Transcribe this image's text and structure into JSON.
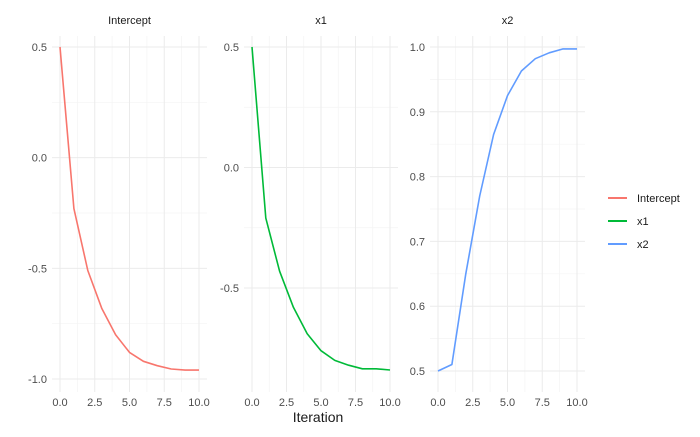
{
  "chart_data": {
    "type": "line",
    "xlabel": "Iteration",
    "ylabel": "",
    "legend_position": "right",
    "grid": true,
    "x_ticks": [
      0.0,
      2.5,
      5.0,
      7.5,
      10.0
    ],
    "x_tick_labels": [
      "0.0",
      "2.5",
      "5.0",
      "7.5",
      "10.0"
    ],
    "legend": [
      {
        "name": "Intercept",
        "color": "#F8766D"
      },
      {
        "name": "x1",
        "color": "#00BA38"
      },
      {
        "name": "x2",
        "color": "#619CFF"
      }
    ],
    "panels": [
      {
        "title": "Intercept",
        "series": "Intercept",
        "color": "#F8766D",
        "ylim": [
          -1.0,
          0.5
        ],
        "y_ticks": [
          0.5,
          0.0,
          -0.5,
          -1.0
        ],
        "y_tick_labels": [
          "0.5",
          "0.0",
          "-0.5",
          "-1.0"
        ],
        "x": [
          0,
          1,
          2,
          3,
          4,
          5,
          6,
          7,
          8,
          9,
          10
        ],
        "y": [
          0.5,
          -0.23,
          -0.51,
          -0.68,
          -0.8,
          -0.88,
          -0.92,
          -0.94,
          -0.955,
          -0.96,
          -0.96
        ]
      },
      {
        "title": "x1",
        "series": "x1",
        "color": "#00BA38",
        "ylim": [
          -0.84,
          0.5
        ],
        "y_ticks": [
          0.5,
          0.0,
          -0.5
        ],
        "y_tick_labels": [
          "0.5",
          "0.0",
          "-0.5"
        ],
        "x": [
          0,
          1,
          2,
          3,
          4,
          5,
          6,
          7,
          8,
          9,
          10
        ],
        "y": [
          0.5,
          -0.21,
          -0.43,
          -0.58,
          -0.69,
          -0.76,
          -0.8,
          -0.82,
          -0.835,
          -0.835,
          -0.84
        ]
      },
      {
        "title": "x2",
        "series": "x2",
        "color": "#619CFF",
        "ylim": [
          0.5,
          1.0
        ],
        "y_ticks": [
          1.0,
          0.9,
          0.8,
          0.7,
          0.6,
          0.5
        ],
        "y_tick_labels": [
          "1.0",
          "0.9",
          "0.8",
          "0.7",
          "0.6",
          "0.5"
        ],
        "x": [
          0,
          1,
          2,
          3,
          4,
          5,
          6,
          7,
          8,
          9,
          10
        ],
        "y": [
          0.5,
          0.51,
          0.65,
          0.77,
          0.865,
          0.925,
          0.963,
          0.982,
          0.991,
          0.997,
          0.997
        ]
      }
    ]
  }
}
